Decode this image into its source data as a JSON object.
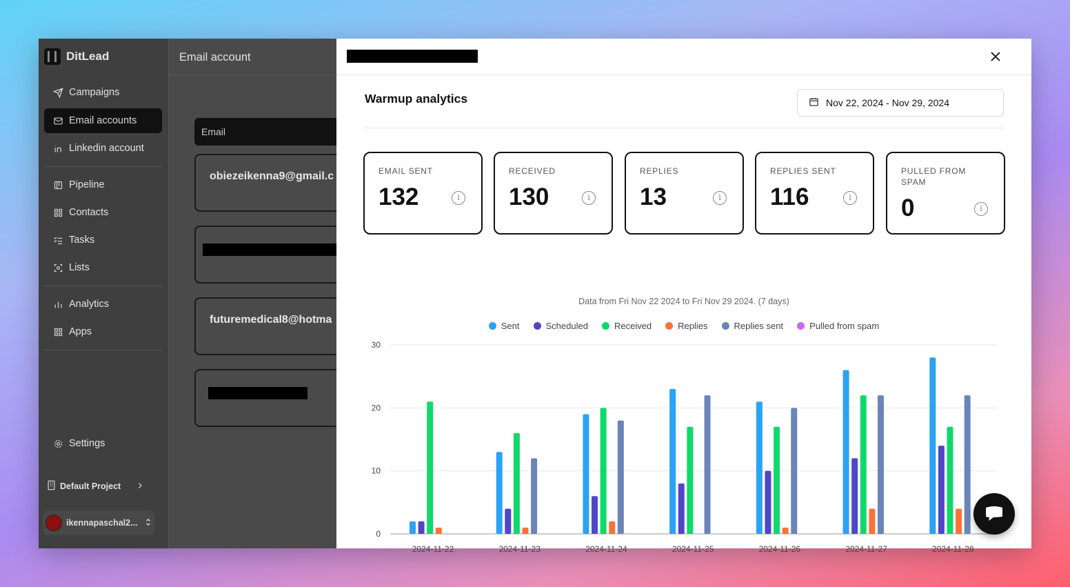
{
  "brand": {
    "name": "DitLead"
  },
  "sidebar": {
    "items": [
      {
        "label": "Campaigns",
        "icon": "send-icon",
        "active": false
      },
      {
        "label": "Email accounts",
        "icon": "mail-icon",
        "active": true
      },
      {
        "label": "Linkedin account",
        "icon": "linkedin-icon",
        "active": false
      },
      {
        "label": "Pipeline",
        "icon": "pipeline-icon",
        "active": false
      },
      {
        "label": "Contacts",
        "icon": "grid-icon",
        "active": false
      },
      {
        "label": "Tasks",
        "icon": "list-check-icon",
        "active": false
      },
      {
        "label": "Lists",
        "icon": "scan-icon",
        "active": false
      },
      {
        "label": "Analytics",
        "icon": "bar-chart-icon",
        "active": false
      },
      {
        "label": "Apps",
        "icon": "grid-icon",
        "active": false
      }
    ],
    "settings_label": "Settings",
    "project_label": "Default Project",
    "user_label": "ikennapaschal2..."
  },
  "main": {
    "title": "Email account",
    "table_header": "Email",
    "accounts": [
      "obiezeikenna9@gmail.c",
      "",
      "futuremedical8@hotma",
      ""
    ]
  },
  "modal": {
    "title": "Warmup analytics",
    "date_range": "Nov 22, 2024 - Nov 29, 2024",
    "stats": [
      {
        "label": "EMAIL SENT",
        "value": "132"
      },
      {
        "label": "RECEIVED",
        "value": "130"
      },
      {
        "label": "REPLIES",
        "value": "13"
      },
      {
        "label": "REPLIES SENT",
        "value": "116"
      },
      {
        "label": "PULLED FROM SPAM",
        "value": "0"
      }
    ]
  },
  "chart_data": {
    "type": "bar",
    "title": "Data from Fri Nov 22 2024 to Fri Nov 29 2024. (7 days)",
    "categories": [
      "2024-11-22",
      "2024-11-23",
      "2024-11-24",
      "2024-11-25",
      "2024-11-26",
      "2024-11-27",
      "2024-11-28"
    ],
    "series": [
      {
        "name": "Sent",
        "color": "#2aa3f5",
        "values": [
          2,
          13,
          19,
          23,
          21,
          26,
          28
        ]
      },
      {
        "name": "Scheduled",
        "color": "#4f46c8",
        "values": [
          2,
          4,
          6,
          8,
          10,
          12,
          14
        ]
      },
      {
        "name": "Received",
        "color": "#10d96b",
        "values": [
          21,
          16,
          20,
          17,
          17,
          22,
          17
        ]
      },
      {
        "name": "Replies",
        "color": "#f97339",
        "values": [
          1,
          1,
          2,
          0,
          1,
          4,
          4
        ]
      },
      {
        "name": "Replies sent",
        "color": "#6b85b8",
        "values": [
          0,
          12,
          18,
          22,
          20,
          22,
          22
        ]
      },
      {
        "name": "Pulled from spam",
        "color": "#c86af2",
        "values": [
          0,
          0,
          0,
          0,
          0,
          0,
          0
        ]
      }
    ],
    "ylim": [
      0,
      30
    ],
    "yticks": [
      0,
      10,
      20,
      30
    ],
    "grid": true,
    "legend": "top-center"
  }
}
